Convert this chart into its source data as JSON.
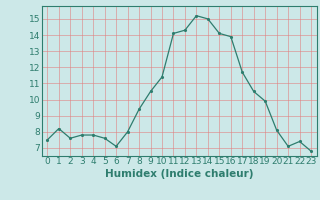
{
  "x": [
    0,
    1,
    2,
    3,
    4,
    5,
    6,
    7,
    8,
    9,
    10,
    11,
    12,
    13,
    14,
    15,
    16,
    17,
    18,
    19,
    20,
    21,
    22,
    23
  ],
  "y": [
    7.5,
    8.2,
    7.6,
    7.8,
    7.8,
    7.6,
    7.1,
    8.0,
    9.4,
    10.5,
    11.4,
    14.1,
    14.3,
    15.2,
    15.0,
    14.1,
    13.9,
    11.7,
    10.5,
    9.9,
    8.1,
    7.1,
    7.4,
    6.8
  ],
  "xlabel": "Humidex (Indice chaleur)",
  "xlim": [
    -0.5,
    23.5
  ],
  "ylim": [
    6.5,
    15.8
  ],
  "yticks": [
    7,
    8,
    9,
    10,
    11,
    12,
    13,
    14,
    15
  ],
  "xticks": [
    0,
    1,
    2,
    3,
    4,
    5,
    6,
    7,
    8,
    9,
    10,
    11,
    12,
    13,
    14,
    15,
    16,
    17,
    18,
    19,
    20,
    21,
    22,
    23
  ],
  "line_color": "#2e7d6e",
  "marker_color": "#2e7d6e",
  "bg_color": "#cce8e8",
  "grid_color_major": "#e08080",
  "grid_color_minor": "#e0c0c0",
  "tick_label_color": "#2e7d6e",
  "axis_label_color": "#2e7d6e",
  "font_size": 6.5,
  "xlabel_font_size": 7.5
}
